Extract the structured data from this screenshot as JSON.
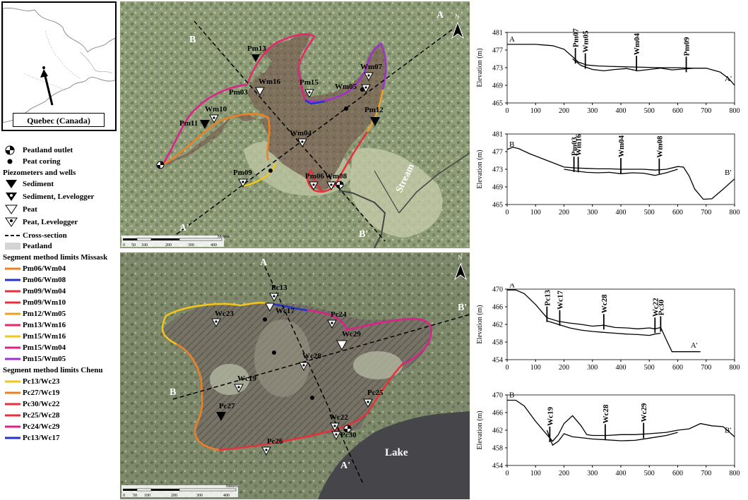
{
  "inset": {
    "label": "Quebec (Canada)"
  },
  "legend": {
    "outlet": "Peatland outlet",
    "coring": "Peat coring",
    "pz_title": "Piezometers and wells",
    "sediment": "Sediment",
    "sediment_lev": "Sediment, Levelogger",
    "peat": "Peat",
    "peat_lev": "Peat, Levelogger",
    "cross": "Cross-section",
    "peatland": "Peatland",
    "missask_title": "Segment method limits Missask",
    "missask": [
      {
        "label": "Pm06/Wm04",
        "color": "#f07f22"
      },
      {
        "label": "Pm06/Wm08",
        "color": "#2233cc"
      },
      {
        "label": "Pm09/Wm04",
        "color": "#e8303a"
      },
      {
        "label": "Pm09/Wm10",
        "color": "#e8303a"
      },
      {
        "label": "Pm12/Wm05",
        "color": "#f0a020"
      },
      {
        "label": "Pm13/Wm16",
        "color": "#e8286a"
      },
      {
        "label": "Pm15/Wm16",
        "color": "#f5c518"
      },
      {
        "label": "Pm15/Wm04",
        "color": "#e0208a"
      },
      {
        "label": "Pm15/Wm05",
        "color": "#a030d0"
      }
    ],
    "chenu_title": "Segment method limits Chenu",
    "chenu": [
      {
        "label": "Pc13/Wc23",
        "color": "#f5c518"
      },
      {
        "label": "Pc27/Wc19",
        "color": "#f07f22"
      },
      {
        "label": "Pc30/Wc22",
        "color": "#e8303a"
      },
      {
        "label": "Pc25/Wc28",
        "color": "#e8303a"
      },
      {
        "label": "Pc24/Wc29",
        "color": "#e0208a"
      },
      {
        "label": "Pc13/Wc17",
        "color": "#2233cc"
      }
    ]
  },
  "map_top": {
    "labels": {
      "A": "A",
      "A_prime": "A'",
      "B": "B",
      "B_prime": "B'",
      "north": "N",
      "stream": "Stream",
      "meters": "Meters"
    },
    "scale_ticks": [
      "0",
      "50",
      "100",
      "200",
      "300",
      "400"
    ],
    "points": [
      "Pm13",
      "Wm16",
      "Pm03",
      "Wm10",
      "Pm11",
      "Pm15",
      "Wm07",
      "Wm05",
      "Pm12",
      "Wm04",
      "Pm09",
      "Pm06",
      "Wm08"
    ]
  },
  "map_bottom": {
    "labels": {
      "A": "A",
      "A_prime": "A'",
      "B": "B",
      "B_prime": "B'",
      "north": "N",
      "lake": "Lake",
      "meters": "Meters"
    },
    "scale_ticks": [
      "0",
      "50",
      "100",
      "200",
      "300",
      "400"
    ],
    "points": [
      "Pc13",
      "Wc17",
      "Wc23",
      "Pc24",
      "Wc29",
      "Wc28",
      "Wc19",
      "Pc27",
      "Pc25",
      "Wc22",
      "Pc30",
      "Pc26"
    ]
  },
  "chart_data": [
    {
      "type": "line",
      "title": "",
      "ylabel": "Elevation (m)",
      "ylim": [
        465,
        481
      ],
      "yticks": [
        "465",
        "469",
        "473",
        "477",
        "481"
      ],
      "xlim": [
        0,
        800
      ],
      "xticks": [
        "0",
        "100",
        "200",
        "300",
        "400",
        "500",
        "600",
        "700",
        "800"
      ],
      "start_label": "A",
      "end_label": "A'",
      "series": [
        {
          "x": [
            0,
            100,
            160,
            200,
            230,
            250,
            280,
            320,
            360,
            420,
            480,
            540,
            600,
            650,
            700,
            750,
            780,
            800
          ],
          "values": [
            478.3,
            478.3,
            478.0,
            477.2,
            475.5,
            474.3,
            473.6,
            473.4,
            473.3,
            473.2,
            473.1,
            473.0,
            473.0,
            472.9,
            472.9,
            472.0,
            470.5,
            469.0
          ]
        },
        {
          "x": [
            230,
            260,
            300,
            340,
            380,
            420,
            460,
            500,
            540,
            580,
            620,
            660,
            700
          ],
          "values": [
            475.0,
            473.5,
            472.6,
            472.3,
            472.6,
            472.8,
            472.3,
            472.6,
            472.9,
            472.5,
            472.7,
            472.9,
            472.9
          ]
        }
      ],
      "markers": [
        {
          "label": "Pm07",
          "x": 240
        },
        {
          "label": "Wm05",
          "x": 275
        },
        {
          "label": "Wm04",
          "x": 455
        },
        {
          "label": "Pm09",
          "x": 630
        }
      ]
    },
    {
      "type": "line",
      "title": "",
      "ylabel": "Elevation (m)",
      "ylim": [
        465,
        481
      ],
      "yticks": [
        "465",
        "469",
        "473",
        "477",
        "481"
      ],
      "xlim": [
        0,
        800
      ],
      "xticks": [
        "0",
        "100",
        "200",
        "300",
        "400",
        "500",
        "600",
        "700",
        "800"
      ],
      "start_label": "B",
      "end_label": "B'",
      "series": [
        {
          "x": [
            0,
            20,
            40,
            80,
            120,
            160,
            200,
            240,
            280,
            320,
            360,
            400,
            440,
            480,
            520,
            560,
            600,
            620,
            640,
            660,
            690,
            720,
            760,
            800
          ],
          "values": [
            477.5,
            478.0,
            477.7,
            476.5,
            475.5,
            474.5,
            473.5,
            473.3,
            473.2,
            473.1,
            473.1,
            473.0,
            473.0,
            473.0,
            472.8,
            473.0,
            473.6,
            473.5,
            471.5,
            468.5,
            466.2,
            466.3,
            468.5,
            470.8
          ]
        },
        {
          "x": [
            200,
            240,
            280,
            320,
            360,
            400,
            440,
            480,
            520,
            560,
            600
          ],
          "values": [
            473.0,
            472.6,
            472.3,
            472.2,
            472.3,
            472.0,
            472.2,
            472.1,
            471.6,
            472.2,
            473.0
          ]
        }
      ],
      "markers": [
        {
          "label": "Pm03",
          "x": 235
        },
        {
          "label": "Wm16",
          "x": 250
        },
        {
          "label": "Wm04",
          "x": 400
        },
        {
          "label": "Wm08",
          "x": 535
        }
      ]
    },
    {
      "type": "line",
      "title": "",
      "ylabel": "Elevation (m)",
      "ylim": [
        454,
        470
      ],
      "yticks": [
        "454",
        "458",
        "462",
        "466",
        "470"
      ],
      "xlim": [
        0,
        800
      ],
      "xticks": [
        "0",
        "100",
        "200",
        "300",
        "400",
        "500",
        "600",
        "700",
        "800"
      ],
      "start_label": "A",
      "end_label": "A'",
      "series": [
        {
          "x": [
            0,
            30,
            60,
            100,
            140,
            180,
            220,
            260,
            300,
            340,
            380,
            420,
            460,
            500,
            520,
            540,
            560,
            580,
            600,
            680
          ],
          "values": [
            469.8,
            469.8,
            469.0,
            466.5,
            463.5,
            462.7,
            462.3,
            462.0,
            461.6,
            461.8,
            461.3,
            461.2,
            461.0,
            461.2,
            461.0,
            461.3,
            458.5,
            455.8,
            455.8,
            455.8
          ]
        },
        {
          "x": [
            140,
            180,
            220,
            260,
            300,
            340,
            380,
            420,
            460,
            500,
            520,
            540
          ],
          "values": [
            462.8,
            462.0,
            461.2,
            460.7,
            460.4,
            460.2,
            460.0,
            459.8,
            459.7,
            459.5,
            459.8,
            460.0
          ]
        }
      ],
      "markers": [
        {
          "label": "Pc13",
          "x": 140
        },
        {
          "label": "Wc17",
          "x": 185
        },
        {
          "label": "Wc28",
          "x": 340
        },
        {
          "label": "Wc22",
          "x": 520
        },
        {
          "label": "Pc30",
          "x": 540
        }
      ]
    },
    {
      "type": "line",
      "title": "",
      "ylabel": "Elevation (m)",
      "ylim": [
        454,
        470
      ],
      "yticks": [
        "454",
        "458",
        "462",
        "466",
        "470"
      ],
      "xlim": [
        0,
        800
      ],
      "xticks": [
        "0",
        "100",
        "200",
        "300",
        "400",
        "500",
        "600",
        "700",
        "800"
      ],
      "start_label": "B",
      "end_label": "B'",
      "series": [
        {
          "x": [
            0,
            30,
            60,
            100,
            140,
            160,
            180,
            200,
            230,
            260,
            280,
            300,
            350,
            400,
            450,
            500,
            560,
            600,
            640,
            680,
            720,
            760,
            800
          ],
          "values": [
            468.8,
            468.8,
            467.5,
            464.0,
            461.0,
            459.5,
            461.0,
            463.5,
            465.3,
            463.0,
            461.0,
            460.8,
            460.8,
            461.0,
            461.0,
            461.2,
            461.5,
            462.0,
            462.3,
            463.5,
            463.0,
            462.8,
            460.5
          ]
        },
        {
          "x": [
            140,
            160,
            180,
            200,
            230,
            260,
            300,
            350,
            400,
            450,
            500,
            560,
            600
          ],
          "values": [
            462.0,
            458.6,
            459.5,
            461.2,
            460.5,
            460.3,
            460.0,
            459.8,
            459.6,
            459.7,
            460.2,
            460.8,
            461.5
          ]
        }
      ],
      "markers": [
        {
          "label": "Wc19",
          "x": 150
        },
        {
          "label": "Wc28",
          "x": 345
        },
        {
          "label": "Wc29",
          "x": 480
        }
      ]
    }
  ]
}
